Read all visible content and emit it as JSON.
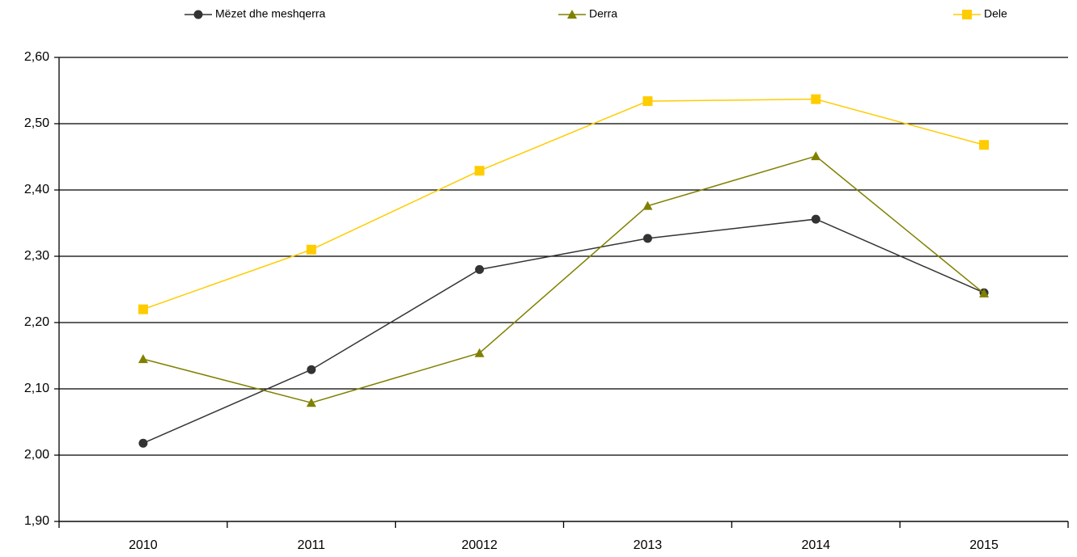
{
  "chart_data": {
    "type": "line",
    "categories": [
      "2010",
      "2011",
      "20012",
      "2013",
      "2014",
      "2015"
    ],
    "series": [
      {
        "name": "Mëzet dhe meshqerra",
        "color": "#333333",
        "marker": "circle",
        "values": [
          2.018,
          2.129,
          2.28,
          2.327,
          2.356,
          2.245
        ]
      },
      {
        "name": "Derra",
        "color": "#808000",
        "marker": "triangle",
        "values": [
          2.145,
          2.079,
          2.154,
          2.376,
          2.451,
          2.244
        ]
      },
      {
        "name": "Dele",
        "color": "#ffcc00",
        "marker": "square",
        "values": [
          2.22,
          2.31,
          2.429,
          2.534,
          2.537,
          2.468
        ]
      }
    ],
    "ylim": [
      1.9,
      2.6
    ],
    "yticks": [
      {
        "value": 1.9,
        "label": "1,90"
      },
      {
        "value": 2.0,
        "label": "2,00"
      },
      {
        "value": 2.1,
        "label": "2,10"
      },
      {
        "value": 2.2,
        "label": "2,20"
      },
      {
        "value": 2.3,
        "label": "2,30"
      },
      {
        "value": 2.4,
        "label": "2,40"
      },
      {
        "value": 2.5,
        "label": "2,50"
      },
      {
        "value": 2.6,
        "label": "2,60"
      }
    ],
    "grid": true,
    "legend": "top"
  }
}
